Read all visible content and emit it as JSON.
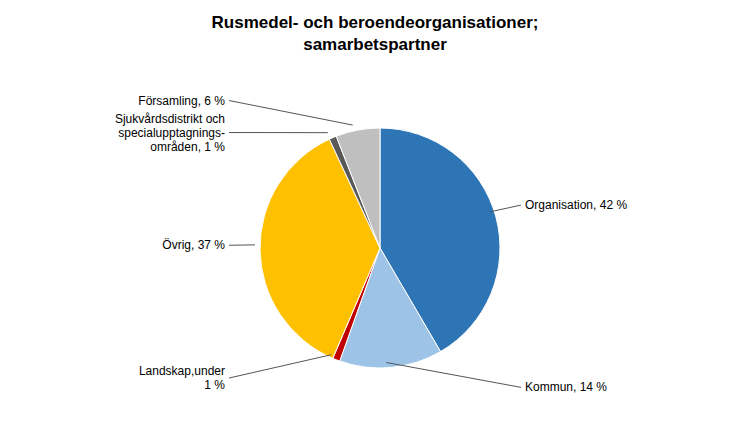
{
  "chart_data": {
    "type": "pie",
    "title": "Rusmedel- och beroendeorganisationer;\nsamarbetspartner",
    "categories": [
      "Organisation, 42 %",
      "Kommun, 14 %",
      "Landskap,under\n1 %",
      "Övrig, 37 %",
      "Sjukvårdsdistrikt och\nspecialupptagnings-\nområden, 1 %",
      "Församling, 6 %"
    ],
    "values": [
      42,
      14,
      1,
      37,
      1,
      6
    ],
    "colors": [
      "#2E75B6",
      "#9DC3E6",
      "#C00000",
      "#FFC000",
      "#595959",
      "#BFBFBF"
    ]
  }
}
